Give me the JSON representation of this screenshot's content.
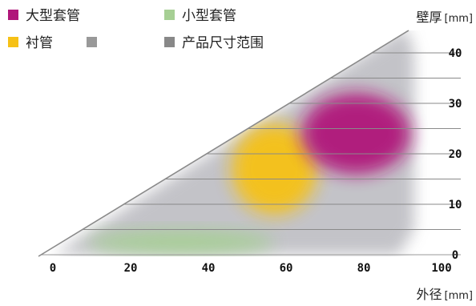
{
  "chart_data": {
    "type": "area",
    "xlabel": "外径",
    "xunit": "[mm]",
    "ylabel": "壁厚",
    "yunit": "[mm]",
    "xlim": [
      0,
      100
    ],
    "ylim": [
      0,
      45
    ],
    "x_ticks": [
      "0",
      "20",
      "40",
      "60",
      "80",
      "100"
    ],
    "y_ticks": [
      "0",
      "10",
      "20",
      "30",
      "40"
    ],
    "grid": true,
    "legend_position": "top-left",
    "legend": [
      {
        "name": "大型套管",
        "color": "#b0177a"
      },
      {
        "name": "小型套管",
        "color": "#a6cf94"
      },
      {
        "name": "衬管",
        "color": "#f6c116"
      },
      {
        "name": "",
        "color": "#999999"
      },
      {
        "name": "产品尺寸范围",
        "color": "#888888"
      }
    ],
    "series": [
      {
        "name": "产品尺寸范围",
        "color": "#b9b9bf",
        "region": [
          {
            "x": 0,
            "y": 0
          },
          {
            "x": 91,
            "y": 45
          },
          {
            "x": 93,
            "y": 40
          },
          {
            "x": 93,
            "y": 5
          },
          {
            "x": 89,
            "y": 0
          }
        ]
      },
      {
        "name": "小型套管",
        "color": "#a6cf94",
        "ellipse": {
          "cx": 33,
          "cy": 2.5,
          "rx": 24,
          "ry": 2.3
        }
      },
      {
        "name": "衬管",
        "color": "#f6c116",
        "ellipse": {
          "cx": 57,
          "cy": 17,
          "rx": 11,
          "ry": 9
        }
      },
      {
        "name": "大型套管",
        "color": "#b0177a",
        "ellipse": {
          "cx": 78,
          "cy": 24,
          "rx": 14,
          "ry": 8
        }
      }
    ]
  }
}
